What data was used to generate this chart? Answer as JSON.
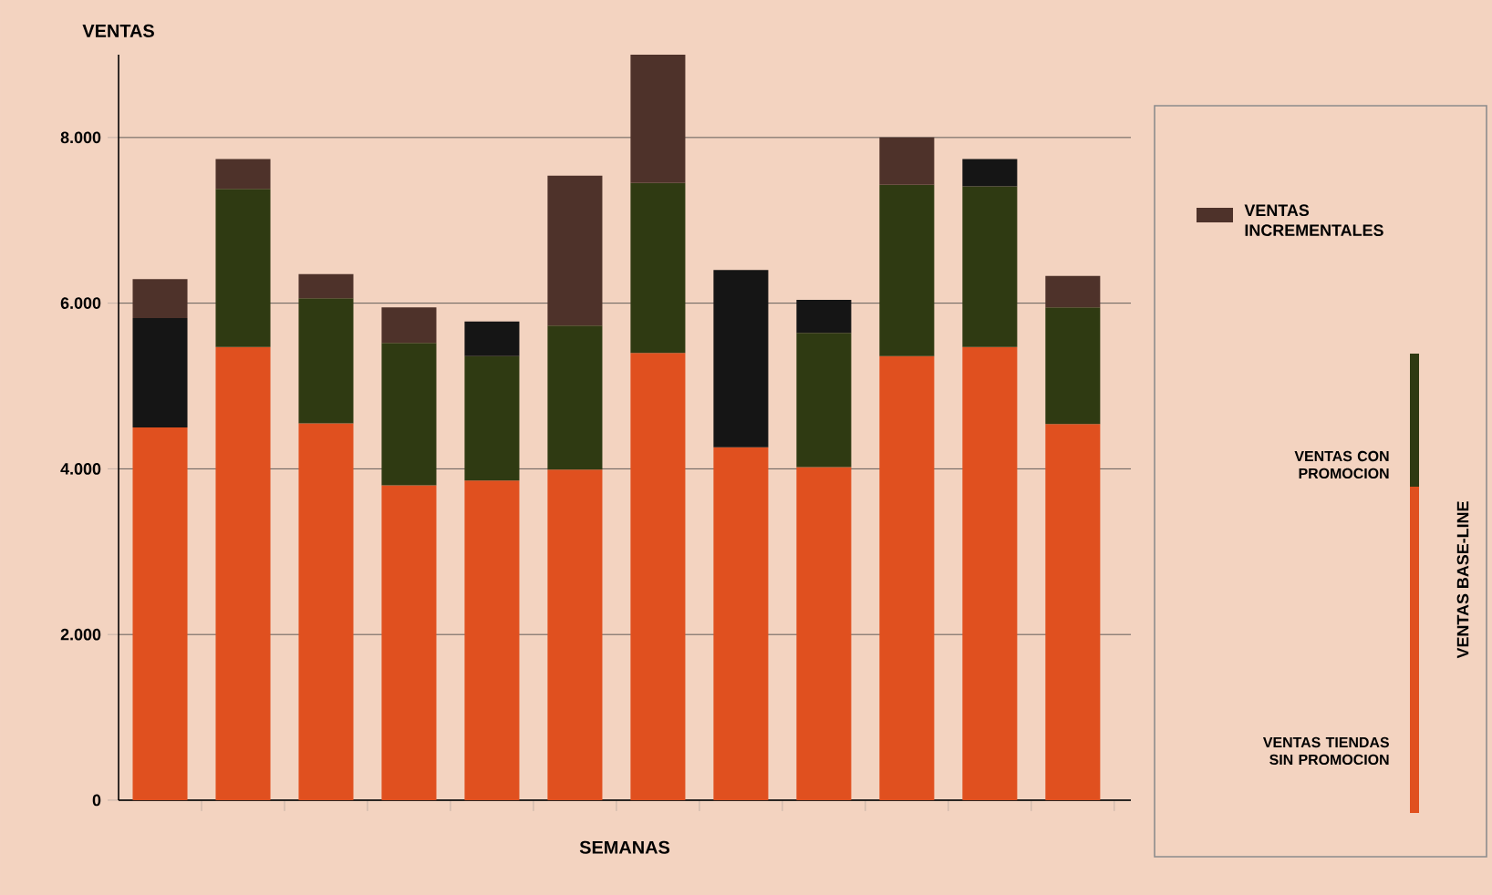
{
  "chart_data": {
    "type": "bar",
    "stacked": true,
    "ylabel": "VENTAS",
    "xlabel": "SEMANAS",
    "legend": "right",
    "grid": "y",
    "categories": [
      null,
      null,
      null,
      null,
      null,
      null,
      null,
      null,
      null,
      null,
      null,
      null
    ],
    "series": [
      {
        "name": "VENTAS TIENDAS SIN PROMOCION",
        "color": "#e0501f",
        "values": [
          4500,
          5470,
          4550,
          3800,
          3860,
          3990,
          5400,
          4260,
          4020,
          5360,
          5470,
          4540
        ]
      },
      {
        "name": "VENTAS CON PROMOCION",
        "color": "#2f3a12",
        "colors": [
          "#151515",
          "#2f3a12",
          "#2f3a12",
          "#2f3a12",
          "#2f3a12",
          "#2f3a12",
          "#2f3a12",
          "#151515",
          "#2f3a12",
          "#2f3a12",
          "#2f3a12",
          "#2f3a12"
        ],
        "values": [
          1320,
          1910,
          1510,
          1720,
          1500,
          1740,
          2050,
          2140,
          1620,
          2070,
          1940,
          1410
        ]
      },
      {
        "name": "VENTAS INCREMENTALES",
        "color": "#4e322a",
        "colors": [
          "#4e322a",
          "#4e322a",
          "#4e322a",
          "#4e322a",
          "#151515",
          "#4e322a",
          "#4e322a",
          "#4e322a",
          "#151515",
          "#4e322a",
          "#151515",
          "#4e322a"
        ],
        "values": [
          470,
          360,
          290,
          430,
          420,
          1810,
          1550,
          null,
          400,
          570,
          330,
          380
        ]
      }
    ],
    "ylim": [
      0,
      9000
    ],
    "yticks": [
      0,
      {
        "value": 2000,
        "label": "2.000"
      },
      {
        "value": 4000,
        "label": "4.000"
      },
      {
        "value": 6000,
        "label": "6.000"
      },
      {
        "value": 8000,
        "label": "8.000"
      }
    ],
    "annotations": [
      "VENTAS BASE-LINE"
    ]
  }
}
